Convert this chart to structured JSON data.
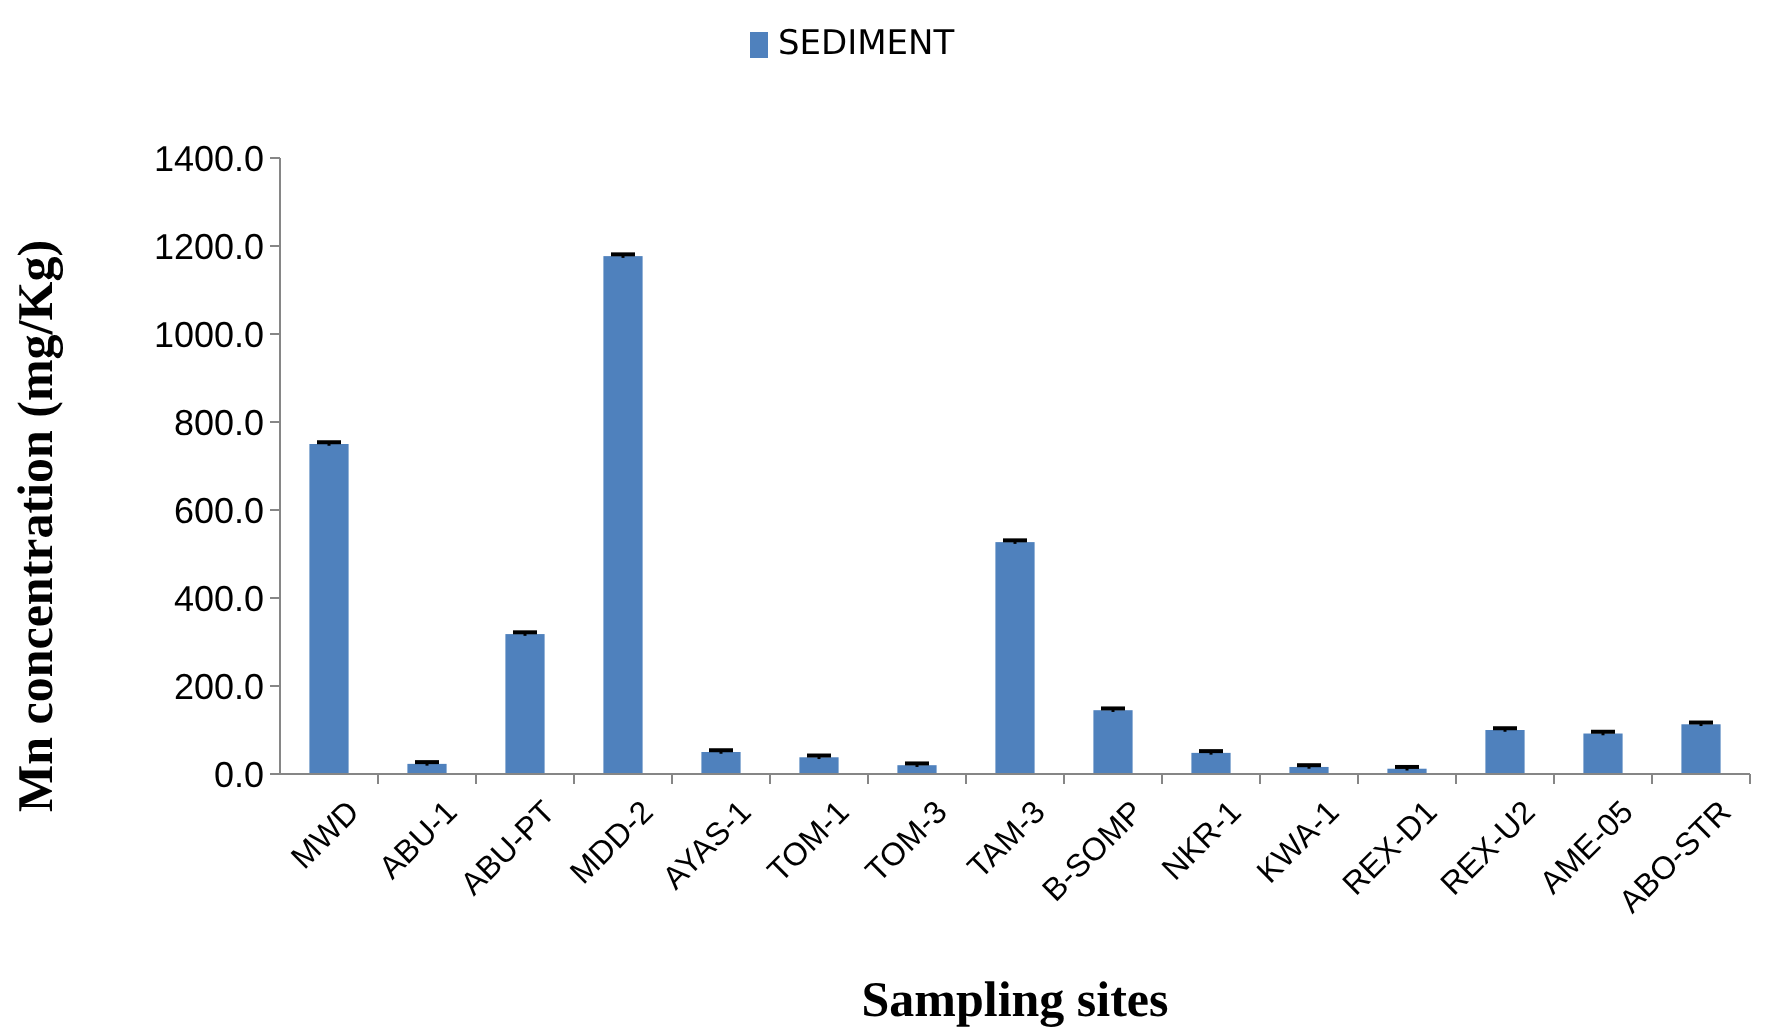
{
  "chart_data": {
    "type": "bar",
    "xlabel": "Sampling sites",
    "ylabel": "Mn  concentration (mg/Kg)",
    "categories": [
      "MWD",
      "ABU-1",
      "ABU-PT",
      "MDD-2",
      "AYAS-1",
      "TOM-1",
      "TOM-3",
      "TAM-3",
      "B-SOMP",
      "NKR-1",
      "KWA-1",
      "REX-D1",
      "REX-U2",
      "AME-05",
      "ABO-STR"
    ],
    "series": [
      {
        "name": "SEDIMENT",
        "color": "#4f81bd",
        "values": [
          750,
          23,
          318,
          1177,
          50,
          38,
          20,
          527,
          145,
          48,
          16,
          12,
          100,
          92,
          113
        ],
        "errors": [
          4,
          4,
          4,
          4,
          4,
          4,
          4,
          4,
          4,
          4,
          4,
          4,
          4,
          4,
          4
        ]
      }
    ],
    "ylim": [
      0,
      1400
    ],
    "yticks": [
      {
        "value": 0,
        "label": "0.0"
      },
      {
        "value": 200,
        "label": "200.0"
      },
      {
        "value": 400,
        "label": "400.0"
      },
      {
        "value": 600,
        "label": "600.0"
      },
      {
        "value": 800,
        "label": "800.0"
      },
      {
        "value": 1000,
        "label": "1000.0"
      },
      {
        "value": 1200,
        "label": "1200.0"
      },
      {
        "value": 1400,
        "label": "1400.0"
      }
    ],
    "legend": "top",
    "grid": false
  }
}
